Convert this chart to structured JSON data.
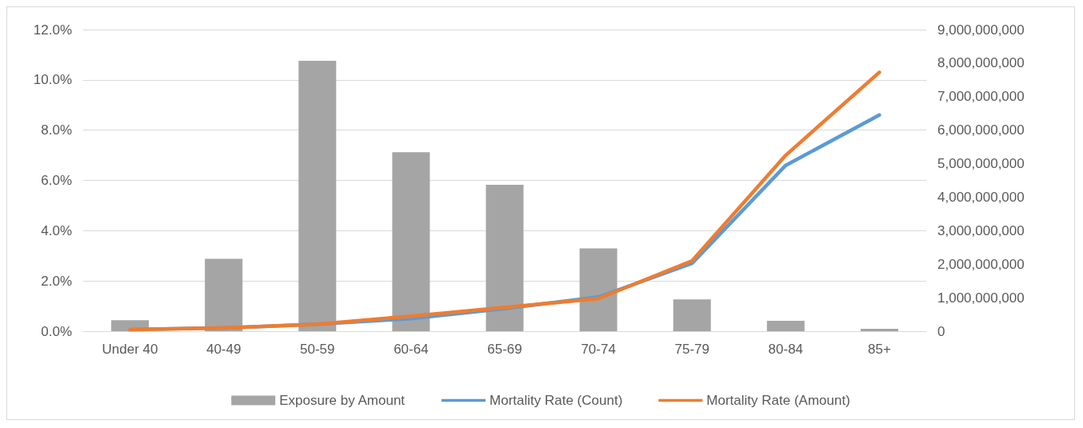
{
  "chart_data": {
    "type": "line",
    "categories": [
      "Under 40",
      "40-49",
      "50-59",
      "60-64",
      "65-69",
      "70-74",
      "75-79",
      "80-84",
      "85+"
    ],
    "series": [
      {
        "name": "Exposure by Amount",
        "type": "bar",
        "axis": "y2",
        "color": "#a5a5a5",
        "values": [
          330000000,
          2160000000,
          8070000000,
          5340000000,
          4370000000,
          2470000000,
          950000000,
          310000000,
          70000000
        ]
      },
      {
        "name": "Mortality Rate (Count)",
        "color": "#5b9bd5",
        "values": [
          0.06,
          0.13,
          0.28,
          0.5,
          0.9,
          1.36,
          2.7,
          6.6,
          8.6
        ]
      },
      {
        "name": "Mortality Rate (Amount)",
        "color": "#ed7d31",
        "values": [
          0.06,
          0.13,
          0.28,
          0.6,
          0.95,
          1.3,
          2.8,
          7.0,
          10.3
        ]
      }
    ],
    "ylim": [
      0,
      12
    ],
    "yticks": [
      {
        "value": 0,
        "label": "0.0%"
      },
      {
        "value": 2,
        "label": "2.0%"
      },
      {
        "value": 4,
        "label": "4.0%"
      },
      {
        "value": 6,
        "label": "6.0%"
      },
      {
        "value": 8,
        "label": "8.0%"
      },
      {
        "value": 10,
        "label": "10.0%"
      },
      {
        "value": 12,
        "label": "12.0%"
      }
    ],
    "y2lim": [
      0,
      9000000000
    ],
    "y2ticks": [
      0,
      {
        "value": 1000000000,
        "label": "1,000,000,000"
      },
      {
        "value": 2000000000,
        "label": "2,000,000,000"
      },
      {
        "value": 3000000000,
        "label": "3,000,000,000"
      },
      {
        "value": 4000000000,
        "label": "4,000,000,000"
      },
      {
        "value": 5000000000,
        "label": "5,000,000,000"
      },
      {
        "value": 6000000000,
        "label": "6,000,000,000"
      },
      {
        "value": 7000000000,
        "label": "7,000,000,000"
      },
      {
        "value": 8000000000,
        "label": "8,000,000,000"
      },
      {
        "value": 9000000000,
        "label": "9,000,000,000"
      }
    ],
    "grid": "y",
    "legend": "bottom",
    "marker": "none",
    "line_style": "solid"
  }
}
